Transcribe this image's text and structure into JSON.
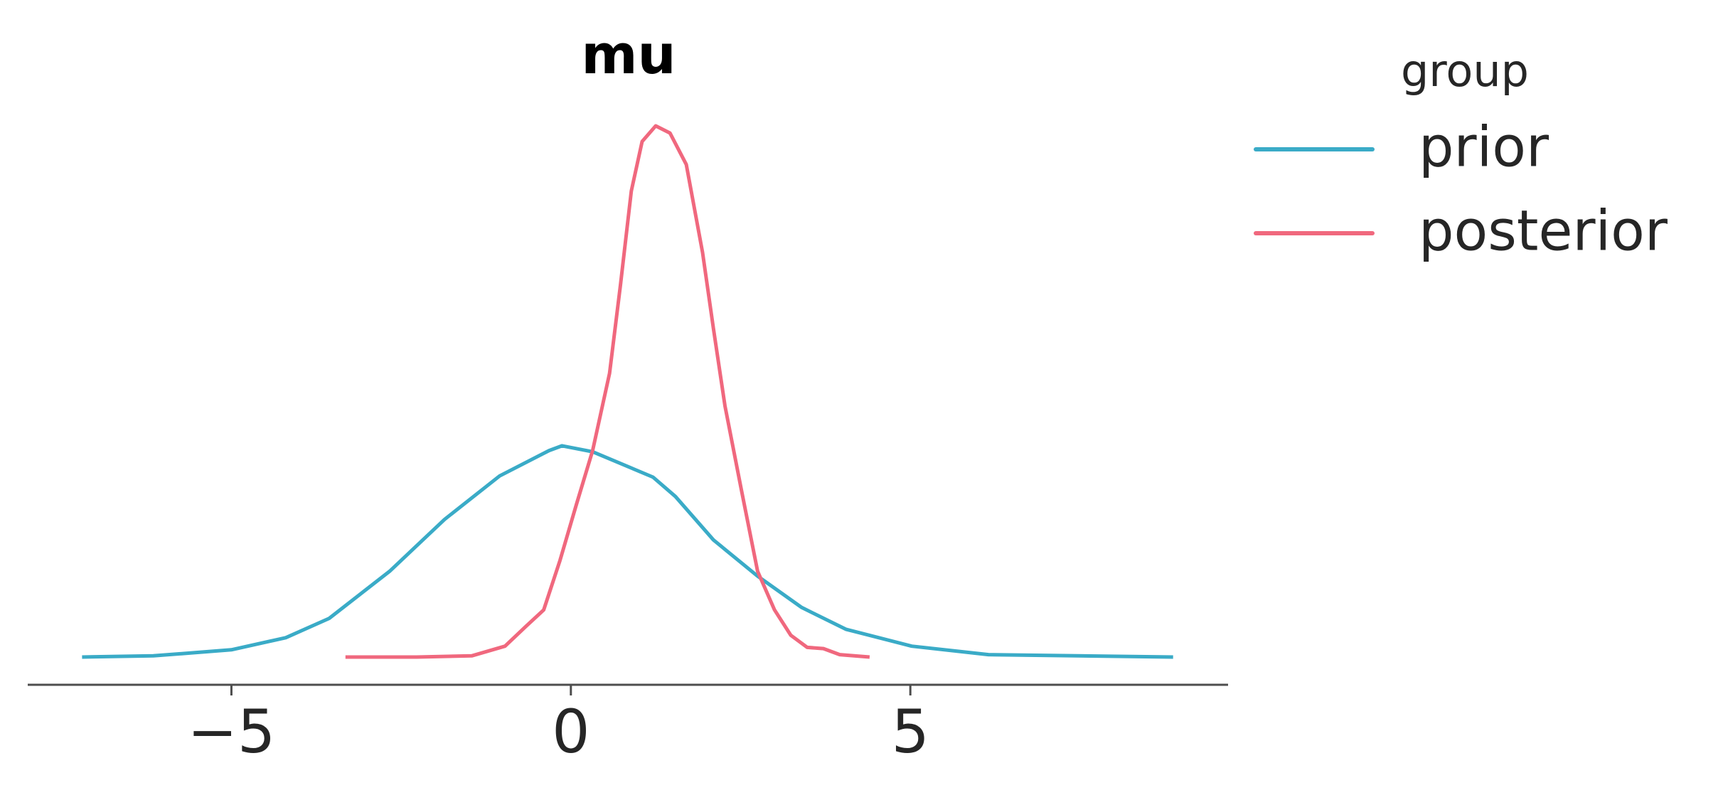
{
  "chart_data": {
    "type": "line",
    "title": "mu",
    "legend_title": "group",
    "legend": "outside-right",
    "xlim": [
      -8.0,
      9.68
    ],
    "ylim": [
      -0.023,
      0.46
    ],
    "xticks": [
      {
        "value": -5,
        "label": "−5"
      },
      0,
      5
    ],
    "series": [
      {
        "name": "prior",
        "color": "#3aabc7",
        "x": [
          -7.2,
          -6.15,
          -5.0,
          -4.2,
          -3.56,
          -2.67,
          -1.86,
          -1.05,
          -0.32,
          -0.13,
          0.32,
          1.21,
          1.54,
          2.1,
          2.75,
          3.4,
          4.05,
          5.02,
          6.15,
          8.87
        ],
        "values": [
          0,
          0.001,
          0.006,
          0.016,
          0.032,
          0.071,
          0.114,
          0.15,
          0.171,
          0.175,
          0.17,
          0.149,
          0.133,
          0.097,
          0.067,
          0.041,
          0.023,
          0.009,
          0.002,
          0
        ]
      },
      {
        "name": "posterior",
        "color": "#f0687e",
        "x": [
          -3.32,
          -2.27,
          -1.46,
          -0.97,
          -0.65,
          -0.4,
          -0.16,
          0.08,
          0.32,
          0.57,
          0.73,
          0.89,
          1.05,
          1.25,
          1.46,
          1.7,
          1.94,
          2.1,
          2.27,
          2.51,
          2.75,
          3.0,
          3.24,
          3.48,
          3.72,
          3.96,
          4.4
        ],
        "values": [
          0,
          0,
          0.001,
          0.009,
          0.026,
          0.039,
          0.08,
          0.126,
          0.171,
          0.235,
          0.308,
          0.386,
          0.427,
          0.44,
          0.434,
          0.408,
          0.335,
          0.272,
          0.208,
          0.139,
          0.071,
          0.039,
          0.018,
          0.008,
          0.007,
          0.002,
          0
        ]
      }
    ]
  }
}
